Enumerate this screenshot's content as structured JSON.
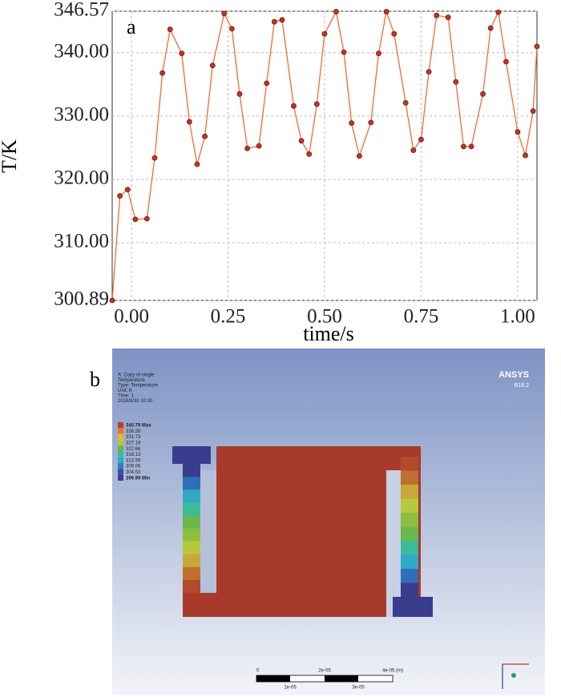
{
  "chart_data": {
    "type": "line",
    "panel_label": "a",
    "xlabel": "time/s",
    "ylabel": "T/K",
    "x": [
      -0.05,
      -0.03,
      -0.01,
      0.01,
      0.04,
      0.06,
      0.08,
      0.1,
      0.13,
      0.15,
      0.17,
      0.19,
      0.21,
      0.24,
      0.26,
      0.28,
      0.3,
      0.33,
      0.35,
      0.37,
      0.39,
      0.42,
      0.44,
      0.46,
      0.48,
      0.5,
      0.53,
      0.55,
      0.57,
      0.59,
      0.62,
      0.64,
      0.66,
      0.68,
      0.71,
      0.73,
      0.75,
      0.77,
      0.79,
      0.82,
      0.84,
      0.86,
      0.88,
      0.91,
      0.93,
      0.95,
      0.97,
      1.0,
      1.02,
      1.04,
      1.05
    ],
    "series": [
      {
        "name": "T",
        "color": "#f26a3c",
        "marker_color": "#c8351f",
        "values": [
          300.89,
          317.4,
          318.4,
          313.7,
          313.8,
          323.4,
          336.8,
          343.7,
          339.9,
          329.1,
          322.4,
          326.8,
          338.0,
          346.2,
          343.8,
          333.5,
          324.9,
          325.3,
          335.2,
          344.9,
          345.2,
          331.6,
          326.1,
          324.0,
          331.9,
          343.0,
          346.5,
          340.1,
          328.9,
          323.7,
          329.0,
          339.9,
          346.5,
          343.0,
          332.1,
          324.6,
          326.3,
          337.0,
          345.9,
          345.6,
          335.4,
          325.2,
          325.2,
          333.5,
          343.9,
          346.4,
          338.6,
          327.5,
          323.8,
          330.8,
          341.0
        ]
      }
    ],
    "xlim": [
      -0.05,
      1.05
    ],
    "xticks": [
      {
        "value": 0,
        "label": "0.00"
      },
      0.25,
      {
        "value": 0.5,
        "label": "0.50"
      },
      0.75,
      {
        "value": 1,
        "label": "1.00"
      }
    ],
    "ylim": [
      300.89,
      346.57
    ],
    "yticks": [
      300.89,
      {
        "value": 310,
        "label": "310.00"
      },
      {
        "value": 320,
        "label": "320.00"
      },
      {
        "value": 330,
        "label": "330.00"
      },
      {
        "value": 340,
        "label": "340.00"
      },
      346.57
    ],
    "grid": true
  },
  "screenshot": {
    "panel_label": "b",
    "brand": "ANSYS",
    "version": "R19.2",
    "info": [
      "A: Copy of single",
      "Temperature",
      "Type: Temperature",
      "Unit: K",
      "Time: 1",
      "2018/8/30 10:30"
    ],
    "legend": [
      "340.79 Max",
      "336.26",
      "331.73",
      "327.19",
      "322.66",
      "318.13",
      "313.59",
      "309.06",
      "304.53",
      "299.99 Min"
    ],
    "scale_top": [
      "0",
      "2e-05",
      "4e-05 (m)"
    ],
    "scale_bottom": [
      "1e-05",
      "3e-05"
    ]
  }
}
